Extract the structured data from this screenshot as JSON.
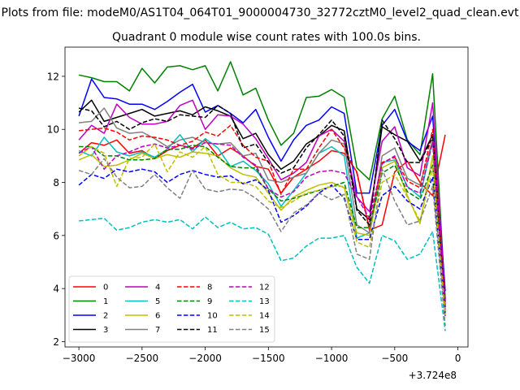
{
  "figure": {
    "suptitle": "Plots from file: modeM0/AS1T04_064T01_9000004730_32772cztM0_level2_quad_clean.evt"
  },
  "chart_data": {
    "type": "line",
    "title": "Quadrant 0 module wise count rates with 100.0s bins.",
    "xlabel": "",
    "ylabel": "",
    "x_offset_label": "+3.724e8",
    "xlim": [
      -3110,
      80
    ],
    "ylim": [
      1.8,
      13.1
    ],
    "xticks": [
      -3000,
      -2500,
      -2000,
      -1500,
      -1000,
      -500,
      0
    ],
    "xtick_labels": [
      "−3000",
      "−2500",
      "−2000",
      "−1500",
      "−1000",
      "−500",
      "0"
    ],
    "yticks": [
      2,
      4,
      6,
      8,
      10,
      12
    ],
    "ytick_labels": [
      "2",
      "4",
      "6",
      "8",
      "10",
      "12"
    ],
    "grid": false,
    "legend_position": "lower-left",
    "legend_columns": 4,
    "x": [
      -3000,
      -2900,
      -2800,
      -2700,
      -2600,
      -2500,
      -2400,
      -2300,
      -2200,
      -2100,
      -2000,
      -1900,
      -1800,
      -1700,
      -1600,
      -1500,
      -1400,
      -1300,
      -1200,
      -1100,
      -1000,
      -900,
      -800,
      -700,
      -600,
      -500,
      -400,
      -300,
      -200,
      -100
    ],
    "series": [
      {
        "name": "0",
        "color": "#ff0000",
        "dash": "solid",
        "values": [
          9.1,
          9.5,
          9.4,
          9.6,
          9.1,
          9.2,
          8.9,
          9.2,
          9.4,
          9.3,
          9.6,
          9.0,
          9.3,
          9.0,
          8.6,
          8.5,
          7.6,
          8.2,
          8.5,
          8.8,
          9.2,
          9.1,
          8.4,
          6.2,
          6.4,
          8.4,
          8.8,
          8.0,
          7.5,
          9.8
        ]
      },
      {
        "name": "1",
        "color": "#008000",
        "dash": "solid",
        "values": [
          12.05,
          11.95,
          11.8,
          11.8,
          11.45,
          12.3,
          11.75,
          12.35,
          12.4,
          12.25,
          12.4,
          11.45,
          12.55,
          11.3,
          11.55,
          10.35,
          9.4,
          9.85,
          11.2,
          11.25,
          11.5,
          11.2,
          8.55,
          8.1,
          10.4,
          11.25,
          9.6,
          9.05,
          12.1,
          3.5
        ]
      },
      {
        "name": "2",
        "color": "#0000ff",
        "dash": "solid",
        "values": [
          10.5,
          11.9,
          11.2,
          11.15,
          10.95,
          10.95,
          10.75,
          11.05,
          11.4,
          11.7,
          10.65,
          10.9,
          10.6,
          10.25,
          10.75,
          9.7,
          8.8,
          9.6,
          10.15,
          10.35,
          10.85,
          10.6,
          7.6,
          7.6,
          10.15,
          10.75,
          9.55,
          9.2,
          10.5,
          3.9
        ]
      },
      {
        "name": "3",
        "color": "#000000",
        "dash": "solid",
        "values": [
          10.65,
          11.1,
          10.3,
          10.45,
          10.6,
          10.75,
          10.5,
          10.6,
          10.7,
          10.55,
          10.85,
          10.7,
          10.5,
          9.65,
          9.85,
          9.05,
          8.5,
          8.8,
          9.45,
          9.75,
          10.15,
          9.95,
          7.0,
          6.6,
          10.1,
          9.8,
          9.55,
          8.8,
          9.8,
          3.6
        ]
      },
      {
        "name": "4",
        "color": "#bf00bf",
        "dash": "solid",
        "values": [
          9.6,
          10.15,
          9.85,
          10.95,
          10.45,
          10.2,
          10.2,
          10.3,
          10.9,
          11.1,
          10.0,
          10.55,
          10.5,
          10.2,
          9.65,
          8.9,
          8.1,
          8.35,
          8.75,
          9.75,
          10.0,
          9.55,
          7.45,
          6.9,
          9.55,
          10.1,
          8.55,
          8.25,
          11.0,
          3.5
        ]
      },
      {
        "name": "5",
        "color": "#00bfbf",
        "dash": "solid",
        "values": [
          9.2,
          9.0,
          9.7,
          9.15,
          9.0,
          9.15,
          8.95,
          9.25,
          9.8,
          9.15,
          9.65,
          9.3,
          8.6,
          8.8,
          8.45,
          7.95,
          7.1,
          7.7,
          8.35,
          9.1,
          9.35,
          9.0,
          5.9,
          6.1,
          8.75,
          8.85,
          7.85,
          7.45,
          9.6,
          3.1
        ]
      },
      {
        "name": "6",
        "color": "#bfbf00",
        "dash": "solid",
        "values": [
          8.85,
          9.05,
          8.6,
          8.65,
          8.85,
          9.1,
          8.9,
          9.05,
          8.95,
          9.15,
          9.1,
          9.0,
          8.55,
          8.3,
          8.2,
          7.6,
          6.95,
          7.45,
          7.7,
          7.9,
          8.0,
          7.8,
          6.1,
          6.0,
          8.55,
          8.8,
          7.5,
          6.45,
          9.0,
          3.05
        ]
      },
      {
        "name": "7",
        "color": "#808080",
        "dash": "solid",
        "values": [
          10.25,
          10.3,
          10.8,
          10.05,
          9.85,
          9.9,
          9.65,
          9.35,
          9.6,
          9.7,
          9.5,
          9.45,
          9.5,
          9.0,
          9.1,
          8.1,
          8.0,
          8.2,
          8.35,
          9.1,
          9.6,
          9.45,
          6.4,
          6.1,
          9.0,
          9.3,
          8.15,
          7.9,
          9.6,
          3.2
        ]
      },
      {
        "name": "8",
        "color": "#ff0000",
        "dash": "dashed",
        "values": [
          9.95,
          10.0,
          10.05,
          9.9,
          9.6,
          9.75,
          9.7,
          9.6,
          9.4,
          9.55,
          9.9,
          9.75,
          10.15,
          9.4,
          8.95,
          8.8,
          7.55,
          8.5,
          8.5,
          9.3,
          10.0,
          9.3,
          8.35,
          6.3,
          8.75,
          8.95,
          8.05,
          7.8,
          10.0,
          3.3
        ]
      },
      {
        "name": "9",
        "color": "#008000",
        "dash": "dashed",
        "values": [
          9.35,
          9.35,
          9.0,
          9.0,
          8.85,
          8.85,
          8.9,
          9.25,
          9.25,
          9.4,
          9.35,
          8.95,
          8.6,
          8.55,
          8.55,
          7.75,
          7.3,
          7.4,
          7.55,
          7.7,
          7.85,
          8.0,
          6.3,
          6.3,
          8.35,
          8.65,
          7.65,
          7.35,
          8.65,
          3.1
        ]
      },
      {
        "name": "10",
        "color": "#0000ff",
        "dash": "dashed",
        "values": [
          7.9,
          8.3,
          8.15,
          8.5,
          8.4,
          8.5,
          8.4,
          8.0,
          8.3,
          8.45,
          8.3,
          8.2,
          8.25,
          7.95,
          8.1,
          7.7,
          6.5,
          6.75,
          7.1,
          7.6,
          7.9,
          7.4,
          5.85,
          5.85,
          7.5,
          7.85,
          7.3,
          7.0,
          8.2,
          2.95
        ]
      },
      {
        "name": "11",
        "color": "#000000",
        "dash": "dashed",
        "values": [
          10.8,
          10.7,
          10.1,
          10.3,
          10.0,
          10.25,
          10.4,
          10.3,
          10.55,
          10.5,
          10.45,
          10.9,
          10.6,
          9.3,
          9.45,
          8.75,
          8.35,
          8.55,
          9.3,
          9.8,
          10.35,
          9.75,
          6.95,
          6.4,
          10.35,
          9.65,
          8.75,
          8.75,
          9.7,
          3.3
        ]
      },
      {
        "name": "12",
        "color": "#bf00bf",
        "dash": "dashed",
        "values": [
          9.1,
          9.35,
          8.5,
          9.0,
          9.15,
          9.35,
          9.45,
          9.3,
          9.4,
          9.25,
          9.5,
          9.45,
          9.4,
          8.95,
          8.65,
          7.75,
          7.45,
          7.65,
          8.2,
          8.4,
          8.45,
          8.35,
          7.45,
          6.65,
          8.7,
          9.0,
          7.8,
          7.6,
          9.5,
          3.2
        ]
      },
      {
        "name": "13",
        "color": "#00bfbf",
        "dash": "dashed",
        "values": [
          6.55,
          6.6,
          6.65,
          6.2,
          6.3,
          6.5,
          6.6,
          6.5,
          6.6,
          6.25,
          6.7,
          6.3,
          6.5,
          6.25,
          6.3,
          6.05,
          5.05,
          5.15,
          5.6,
          5.9,
          5.9,
          6.0,
          4.8,
          4.2,
          6.0,
          5.8,
          5.1,
          5.3,
          6.15,
          2.4
        ]
      },
      {
        "name": "14",
        "color": "#bfbf00",
        "dash": "dashed",
        "values": [
          9.0,
          9.35,
          9.1,
          7.85,
          8.9,
          8.95,
          9.45,
          8.4,
          9.15,
          8.95,
          9.35,
          8.3,
          8.0,
          8.0,
          7.85,
          7.3,
          7.05,
          7.3,
          7.6,
          7.7,
          7.85,
          7.85,
          5.75,
          5.55,
          8.0,
          8.3,
          7.45,
          6.55,
          8.55,
          3.0
        ]
      },
      {
        "name": "15",
        "color": "#808080",
        "dash": "dashed",
        "values": [
          8.45,
          8.3,
          8.9,
          8.2,
          7.8,
          7.85,
          8.3,
          7.8,
          7.4,
          8.45,
          7.75,
          7.65,
          7.75,
          7.7,
          7.4,
          7.0,
          6.15,
          6.85,
          7.15,
          7.6,
          7.35,
          7.55,
          5.3,
          5.1,
          8.5,
          7.3,
          6.4,
          6.55,
          7.85,
          2.6
        ]
      }
    ]
  }
}
